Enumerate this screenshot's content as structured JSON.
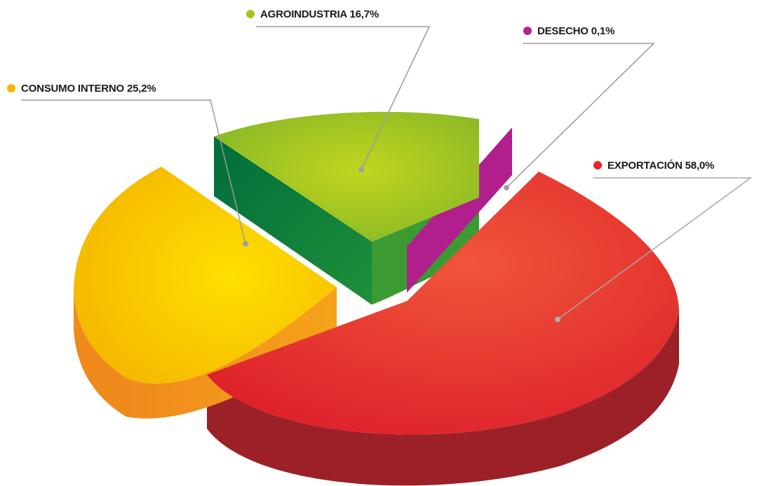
{
  "chart_data": {
    "type": "pie",
    "title": "",
    "slices": [
      {
        "label": "EXPORTACIÓN 58,0%",
        "name": "EXPORTACIÓN",
        "value": 58.0,
        "color": "#e5262b"
      },
      {
        "label": "CONSUMO INTERNO 25,2%",
        "name": "CONSUMO INTERNO",
        "value": 25.2,
        "color": "#f7be00"
      },
      {
        "label": "AGROINDUSTRIA 16,7%",
        "name": "AGROINDUSTRIA",
        "value": 16.7,
        "color": "#a6c319"
      },
      {
        "label": "DESECHO 0,1%",
        "name": "DESECHO",
        "value": 0.1,
        "color": "#b2258e"
      }
    ],
    "style": "3d-exploded",
    "legend": "callout-labels"
  }
}
